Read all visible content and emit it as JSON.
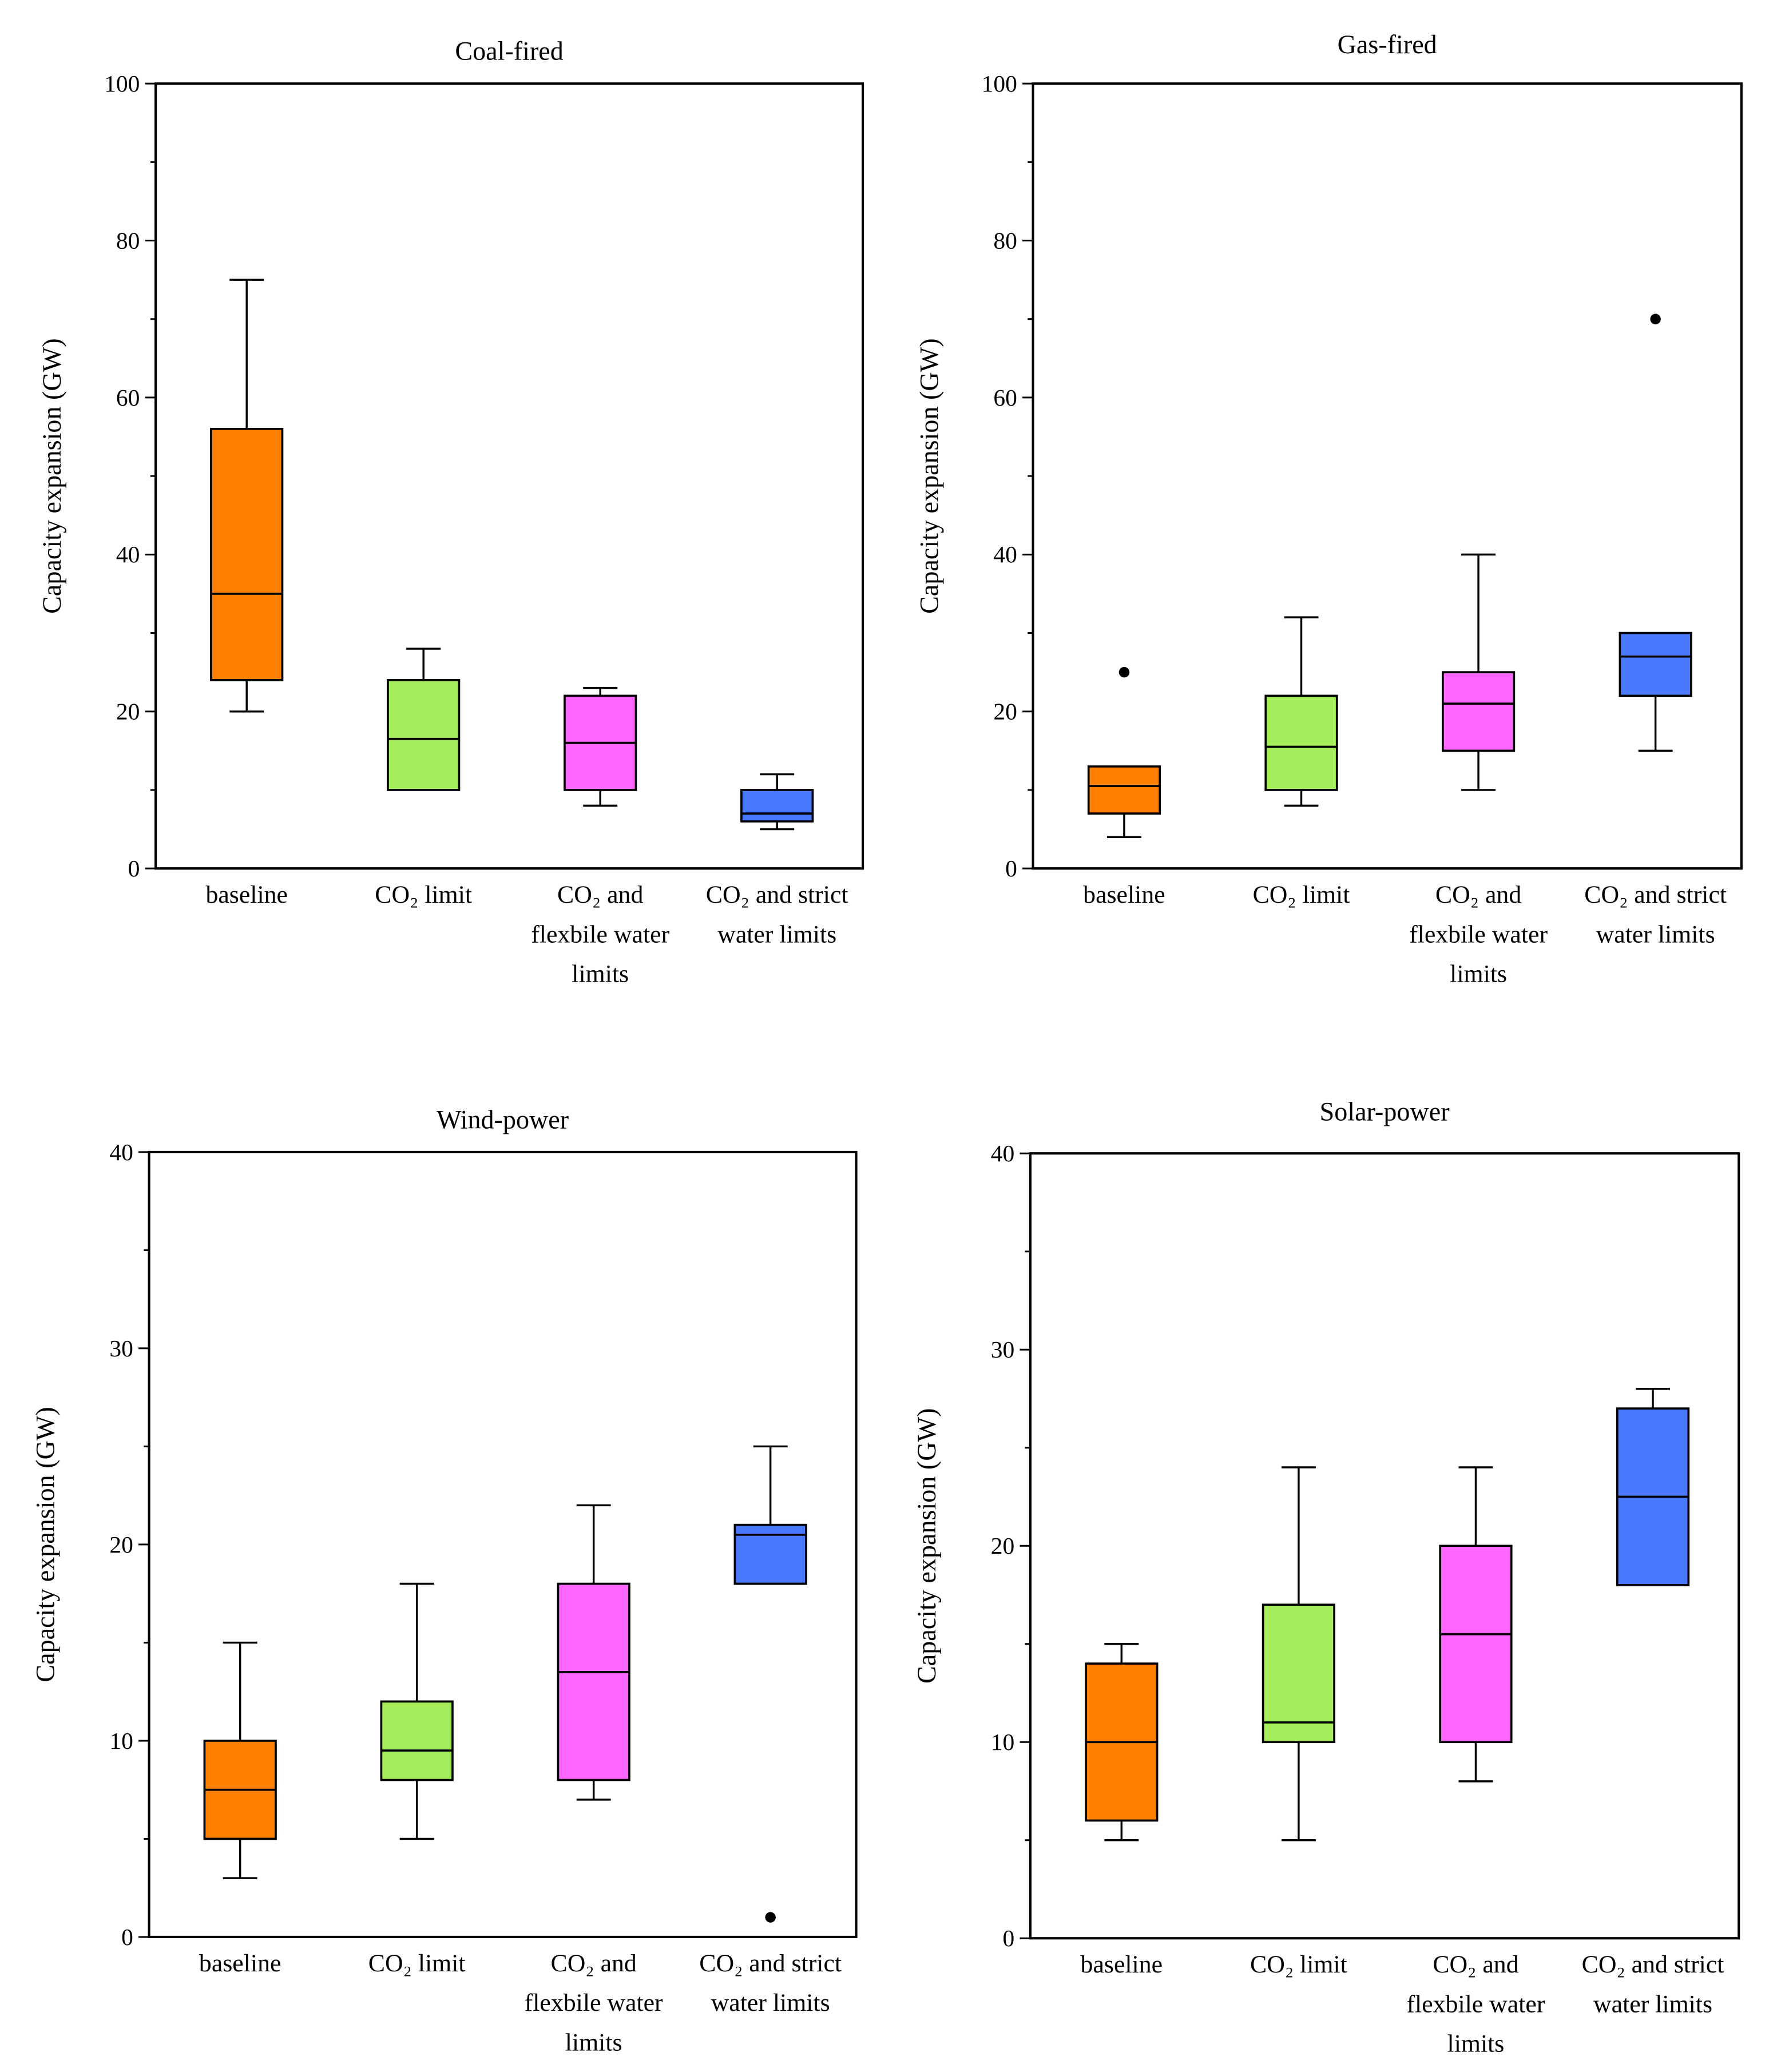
{
  "chart_data": [
    {
      "type": "box",
      "title": "Coal-fired",
      "ylabel": "Capacity expansion (GW)",
      "ylim": [
        0,
        100
      ],
      "yticks": [
        0,
        20,
        40,
        60,
        80,
        100
      ],
      "minor_step": 10,
      "categories": [
        [
          "baseline"
        ],
        [
          "CO₂ limit"
        ],
        [
          "CO₂  and",
          "flexbile water",
          "limits"
        ],
        [
          "CO₂  and strict",
          "water  limits"
        ]
      ],
      "boxes": [
        {
          "min": 20,
          "q1": 24,
          "median": 35,
          "q3": 56,
          "max": 75,
          "outliers": []
        },
        {
          "min": 10,
          "q1": 10,
          "median": 16.5,
          "q3": 24,
          "max": 28,
          "outliers": []
        },
        {
          "min": 8,
          "q1": 10,
          "median": 16,
          "q3": 22,
          "max": 23,
          "outliers": []
        },
        {
          "min": 5,
          "q1": 6,
          "median": 7,
          "q3": 10,
          "max": 12,
          "outliers": []
        }
      ]
    },
    {
      "type": "box",
      "title": "Gas-fired",
      "ylabel": "Capacity expansion (GW)",
      "ylim": [
        0,
        100
      ],
      "yticks": [
        0,
        20,
        40,
        60,
        80,
        100
      ],
      "minor_step": 10,
      "categories": [
        [
          "baseline"
        ],
        [
          "CO₂ limit"
        ],
        [
          "CO₂  and",
          "flexbile water",
          "limits"
        ],
        [
          "CO₂  and strict",
          "water  limits"
        ]
      ],
      "boxes": [
        {
          "min": 4,
          "q1": 7,
          "median": 10.5,
          "q3": 13,
          "max": 13,
          "outliers": [
            25
          ]
        },
        {
          "min": 8,
          "q1": 10,
          "median": 15.5,
          "q3": 22,
          "max": 32,
          "outliers": []
        },
        {
          "min": 10,
          "q1": 15,
          "median": 21,
          "q3": 25,
          "max": 40,
          "outliers": []
        },
        {
          "min": 15,
          "q1": 22,
          "median": 27,
          "q3": 30,
          "max": 30,
          "outliers": [
            70
          ]
        }
      ]
    },
    {
      "type": "box",
      "title": "Wind-power",
      "ylabel": "Capacity expansion (GW)",
      "ylim": [
        0,
        40
      ],
      "yticks": [
        0,
        10,
        20,
        30,
        40
      ],
      "minor_step": 5,
      "categories": [
        [
          "baseline"
        ],
        [
          "CO₂ limit"
        ],
        [
          "CO₂  and",
          "flexbile water",
          "limits"
        ],
        [
          "CO₂  and strict",
          "water  limits"
        ]
      ],
      "boxes": [
        {
          "min": 3,
          "q1": 5,
          "median": 7.5,
          "q3": 10,
          "max": 15,
          "outliers": []
        },
        {
          "min": 5,
          "q1": 8,
          "median": 9.5,
          "q3": 12,
          "max": 18,
          "outliers": []
        },
        {
          "min": 7,
          "q1": 8,
          "median": 13.5,
          "q3": 18,
          "max": 22,
          "outliers": []
        },
        {
          "min": 18,
          "q1": 18,
          "median": 20.5,
          "q3": 21,
          "max": 25,
          "outliers": [
            1
          ]
        }
      ]
    },
    {
      "type": "box",
      "title": "Solar-power",
      "ylabel": "Capacity expansion (GW)",
      "ylim": [
        0,
        40
      ],
      "yticks": [
        0,
        10,
        20,
        30,
        40
      ],
      "minor_step": 5,
      "categories": [
        [
          "baseline"
        ],
        [
          "CO₂ limit"
        ],
        [
          "CO₂  and",
          "flexbile water",
          "limits"
        ],
        [
          "CO₂  and strict",
          "water  limits"
        ]
      ],
      "boxes": [
        {
          "min": 5,
          "q1": 6,
          "median": 10,
          "q3": 14,
          "max": 15,
          "outliers": []
        },
        {
          "min": 5,
          "q1": 10,
          "median": 11,
          "q3": 17,
          "max": 24,
          "outliers": []
        },
        {
          "min": 8,
          "q1": 10,
          "median": 15.5,
          "q3": 20,
          "max": 24,
          "outliers": []
        },
        {
          "min": 18,
          "q1": 18,
          "median": 22.5,
          "q3": 27,
          "max": 28,
          "outliers": []
        }
      ]
    }
  ],
  "colors": [
    "#FF8000",
    "#A6EE5C",
    "#FF66FF",
    "#4A78FF"
  ]
}
